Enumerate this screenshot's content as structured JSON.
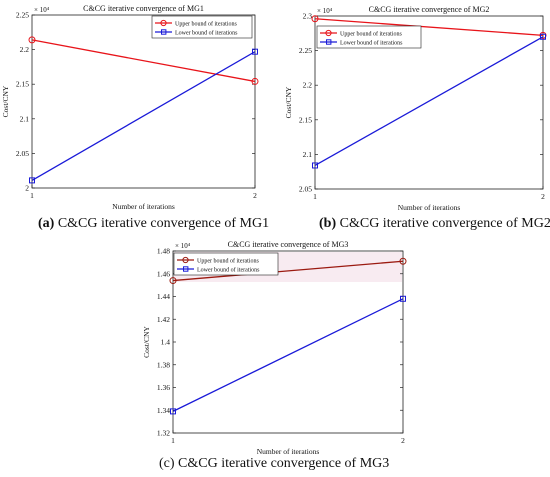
{
  "colors": {
    "upper": "#e8141a",
    "upper_mg3": "#9b1a10",
    "lower": "#1a1ad8",
    "axis": "#222222",
    "text": "#111111",
    "band": "#f3dbe6"
  },
  "captions": {
    "a": {
      "tag": "(a)",
      "text": " C&CG iterative convergence of MG1"
    },
    "b": {
      "tag": "(b)",
      "text": " C&CG iterative convergence of MG2"
    },
    "c": {
      "tag": "",
      "text": "(c) C&CG iterative convergence of MG3"
    }
  },
  "chart_data": [
    {
      "type": "line",
      "title": "C&CG iterative convergence of MG1",
      "xlabel": "Number of iterations",
      "ylabel": "Cost/CNY",
      "exponent_label": "× 10⁴",
      "x": [
        1,
        2
      ],
      "xticks": [
        "1",
        "2"
      ],
      "yticks": [
        "2",
        "2.05",
        "2.1",
        "2.15",
        "2.2",
        "2.25"
      ],
      "ylim": [
        2.0,
        2.25
      ],
      "legend_position": "top-right",
      "series": [
        {
          "name": "Upper bound of iterations",
          "marker": "circle",
          "values": [
            2.214,
            2.154
          ]
        },
        {
          "name": "Lower bound of iterations",
          "marker": "square",
          "values": [
            2.011,
            2.197
          ]
        }
      ]
    },
    {
      "type": "line",
      "title": "C&CG iterative convergence of MG2",
      "xlabel": "Number of iterations",
      "ylabel": "Cost/CNY",
      "exponent_label": "× 10⁴",
      "x": [
        1,
        2
      ],
      "xticks": [
        "1",
        "2"
      ],
      "yticks": [
        "2.05",
        "2.1",
        "2.15",
        "2.2",
        "2.25",
        "2.3"
      ],
      "ylim": [
        2.05,
        2.3
      ],
      "legend_position": "top-left",
      "series": [
        {
          "name": "Upper bound of iterations",
          "marker": "circle",
          "values": [
            2.296,
            2.272
          ]
        },
        {
          "name": "Lower bound of iterations",
          "marker": "square",
          "values": [
            2.084,
            2.27
          ]
        }
      ]
    },
    {
      "type": "line",
      "title": "C&CG iterative convergence of MG3",
      "xlabel": "Number of iterations",
      "ylabel": "Cost/CNY",
      "exponent_label": "× 10⁴",
      "x": [
        1,
        2
      ],
      "xticks": [
        "1",
        "2"
      ],
      "yticks": [
        "1.32",
        "1.34",
        "1.36",
        "1.38",
        "1.4",
        "1.42",
        "1.44",
        "1.46",
        "1.48"
      ],
      "ylim": [
        1.32,
        1.48
      ],
      "legend_position": "top-left",
      "series": [
        {
          "name": "Upper bound of iterations",
          "marker": "circle",
          "values": [
            1.454,
            1.471
          ]
        },
        {
          "name": "Lower bound of iterations",
          "marker": "square",
          "values": [
            1.339,
            1.438
          ]
        }
      ]
    }
  ]
}
